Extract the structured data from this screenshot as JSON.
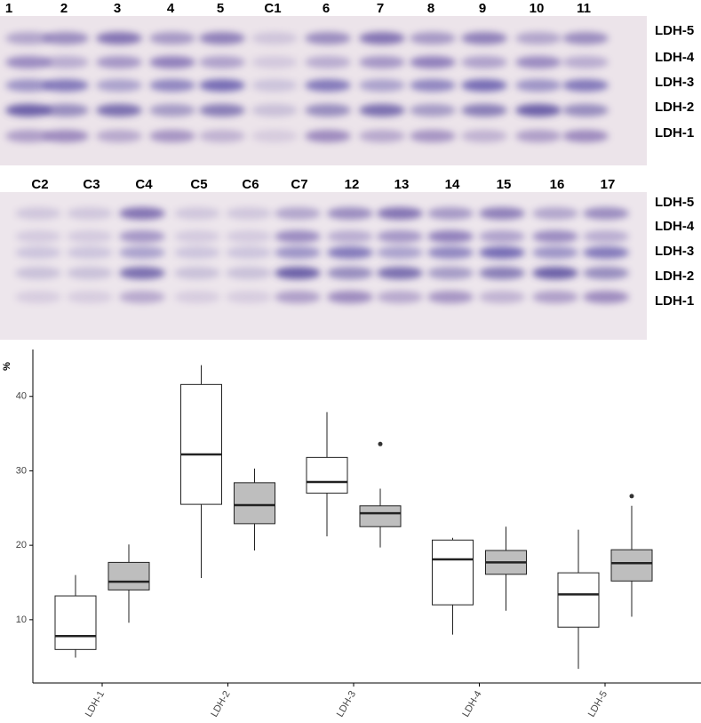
{
  "gel_top": {
    "lanes": [
      "1",
      "2",
      "3",
      "4",
      "5",
      "C1",
      "6",
      "7",
      "8",
      "9",
      "10",
      "11"
    ],
    "bands": [
      "LDH-5",
      "LDH-4",
      "LDH-3",
      "LDH-2",
      "LDH-1"
    ]
  },
  "gel_bottom": {
    "lanes": [
      "C2",
      "C3",
      "C4",
      "C5",
      "C6",
      "C7",
      "12",
      "13",
      "14",
      "15",
      "16",
      "17"
    ],
    "bands": [
      "LDH-5",
      "LDH-4",
      "LDH-3",
      "LDH-2",
      "LDH-1"
    ]
  },
  "chart_data": {
    "type": "box",
    "y_label": "%",
    "categories": [
      "LDH-1",
      "LDH-2",
      "LDH-3",
      "LDH-4",
      "LDH-5"
    ],
    "ylim": [
      1.5,
      46.3
    ],
    "yticks": [
      10,
      20,
      30,
      40
    ],
    "series": [
      {
        "color": "#ffffff",
        "low": [
          4.9,
          15.6,
          21.2,
          8.0,
          3.4
        ],
        "q1": [
          6.0,
          25.5,
          27.0,
          12.0,
          9.0
        ],
        "median": [
          7.8,
          32.2,
          28.5,
          18.1,
          13.4
        ],
        "q3": [
          13.2,
          41.6,
          31.8,
          20.7,
          16.3
        ],
        "high": [
          16.0,
          44.2,
          37.9,
          21.0,
          22.1
        ],
        "outliers": [
          [],
          [],
          [],
          [],
          []
        ]
      },
      {
        "color": "#bebebe",
        "low": [
          9.6,
          19.3,
          19.7,
          11.2,
          10.4
        ],
        "q1": [
          14.0,
          22.9,
          22.5,
          16.1,
          15.2
        ],
        "median": [
          15.1,
          25.4,
          24.3,
          17.7,
          17.6
        ],
        "q3": [
          17.7,
          28.4,
          25.3,
          19.3,
          19.4
        ],
        "high": [
          20.1,
          30.3,
          27.6,
          22.5,
          25.3
        ],
        "outliers": [
          [],
          [],
          [
            33.6
          ],
          [],
          [
            26.6
          ]
        ]
      }
    ]
  }
}
